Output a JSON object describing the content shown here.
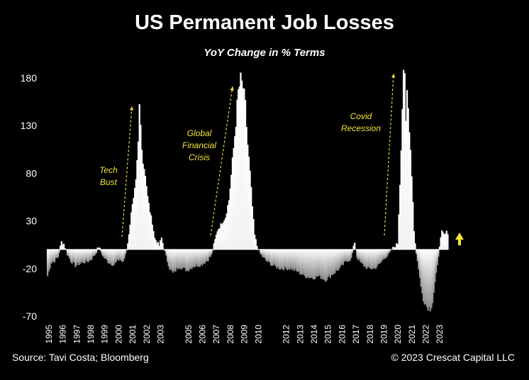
{
  "chart_data": {
    "type": "bar",
    "title": "US Permanent Job Losses",
    "subtitle": "YoY Change in % Terms",
    "xlabel": "",
    "ylabel": "",
    "ylim": [
      -75,
      195
    ],
    "yticks": [
      180,
      130,
      80,
      30,
      -20,
      -70
    ],
    "x_tick_labels": [
      "1995",
      "1996",
      "1997",
      "1998",
      "1999",
      "2000",
      "2001",
      "2002",
      "2003",
      "2005",
      "2006",
      "2007",
      "2008",
      "2009",
      "2010",
      "2012",
      "2013",
      "2014",
      "2015",
      "2016",
      "2017",
      "2018",
      "2019",
      "2020",
      "2021",
      "2022",
      "2023"
    ],
    "series": [
      {
        "anchors": [
          [
            "1995-01",
            -28
          ],
          [
            "1995-04",
            -14
          ],
          [
            "1995-07",
            -12
          ],
          [
            "1995-10",
            -8
          ],
          [
            "1996-01",
            8
          ],
          [
            "1996-03",
            6
          ],
          [
            "1996-06",
            -5
          ],
          [
            "1996-09",
            -12
          ],
          [
            "1997-01",
            -17
          ],
          [
            "1997-06",
            -14
          ],
          [
            "1998-01",
            -12
          ],
          [
            "1998-06",
            -5
          ],
          [
            "1998-09",
            3
          ],
          [
            "1999-01",
            -8
          ],
          [
            "1999-06",
            -14
          ],
          [
            "1999-10",
            -16
          ],
          [
            "2000-03",
            -10
          ],
          [
            "2000-06",
            -14
          ],
          [
            "2000-09",
            0
          ],
          [
            "2000-11",
            15
          ],
          [
            "2001-01",
            40
          ],
          [
            "2001-03",
            52
          ],
          [
            "2001-05",
            70
          ],
          [
            "2001-07",
            110
          ],
          [
            "2001-08",
            150
          ],
          [
            "2001-09",
            130
          ],
          [
            "2001-11",
            92
          ],
          [
            "2002-01",
            80
          ],
          [
            "2002-03",
            55
          ],
          [
            "2002-05",
            40
          ],
          [
            "2002-07",
            28
          ],
          [
            "2002-09",
            12
          ],
          [
            "2002-11",
            8
          ],
          [
            "2003-01",
            4
          ],
          [
            "2003-03",
            12
          ],
          [
            "2003-05",
            2
          ],
          [
            "2003-07",
            -8
          ],
          [
            "2003-10",
            -20
          ],
          [
            "2004-01",
            -25
          ],
          [
            "2004-06",
            -18
          ],
          [
            "2005-01",
            -22
          ],
          [
            "2005-06",
            -18
          ],
          [
            "2006-01",
            -16
          ],
          [
            "2006-06",
            -12
          ],
          [
            "2006-10",
            -6
          ],
          [
            "2007-01",
            10
          ],
          [
            "2007-03",
            20
          ],
          [
            "2007-07",
            28
          ],
          [
            "2007-10",
            34
          ],
          [
            "2008-01",
            52
          ],
          [
            "2008-03",
            78
          ],
          [
            "2008-06",
            120
          ],
          [
            "2008-09",
            165
          ],
          [
            "2008-11",
            177
          ],
          [
            "2009-01",
            170
          ],
          [
            "2009-03",
            150
          ],
          [
            "2009-05",
            110
          ],
          [
            "2009-07",
            80
          ],
          [
            "2009-09",
            45
          ],
          [
            "2009-11",
            15
          ],
          [
            "2010-01",
            4
          ],
          [
            "2010-04",
            -5
          ],
          [
            "2010-09",
            -12
          ],
          [
            "2011-03",
            -17
          ],
          [
            "2011-09",
            -20
          ],
          [
            "2012-06",
            -20
          ],
          [
            "2013-01",
            -24
          ],
          [
            "2013-06",
            -28
          ],
          [
            "2014-01",
            -30
          ],
          [
            "2014-06",
            -28
          ],
          [
            "2014-12",
            -32
          ],
          [
            "2015-06",
            -26
          ],
          [
            "2015-12",
            -20
          ],
          [
            "2016-06",
            -12
          ],
          [
            "2016-10",
            -10
          ],
          [
            "2017-01",
            8
          ],
          [
            "2017-03",
            -8
          ],
          [
            "2017-06",
            -14
          ],
          [
            "2017-12",
            -20
          ],
          [
            "2018-06",
            -20
          ],
          [
            "2018-10",
            -16
          ],
          [
            "2019-03",
            -8
          ],
          [
            "2019-06",
            -6
          ],
          [
            "2019-09",
            0
          ],
          [
            "2019-12",
            4
          ],
          [
            "2020-02",
            6
          ],
          [
            "2020-04",
            70
          ],
          [
            "2020-06",
            150
          ],
          [
            "2020-07",
            192
          ],
          [
            "2020-08",
            175
          ],
          [
            "2020-09",
            130
          ],
          [
            "2020-10",
            165
          ],
          [
            "2020-12",
            130
          ],
          [
            "2021-02",
            80
          ],
          [
            "2021-04",
            20
          ],
          [
            "2021-06",
            -5
          ],
          [
            "2021-08",
            -20
          ],
          [
            "2021-10",
            -40
          ],
          [
            "2021-12",
            -52
          ],
          [
            "2022-03",
            -60
          ],
          [
            "2022-06",
            -62
          ],
          [
            "2022-08",
            -55
          ],
          [
            "2022-10",
            -35
          ],
          [
            "2022-12",
            -18
          ],
          [
            "2023-02",
            5
          ],
          [
            "2023-04",
            18
          ],
          [
            "2023-06",
            15
          ],
          [
            "2023-08",
            18
          ]
        ]
      }
    ],
    "annotations": [
      {
        "label": "Tech Bust",
        "lines": [
          "Tech",
          "Bust"
        ]
      },
      {
        "label": "Global Financial Crisis",
        "lines": [
          "Global",
          "Financial",
          "Crisis"
        ]
      },
      {
        "label": "Covid Recession",
        "lines": [
          "Covid",
          "Recession"
        ]
      }
    ],
    "colors": {
      "background": "#000000",
      "bars": "#ffffff",
      "annotation": "#f4e23a"
    }
  },
  "footer": {
    "source": "Source: Tavi Costa; Bloomberg",
    "copyright": "© 2023 Crescat Capital LLC"
  }
}
